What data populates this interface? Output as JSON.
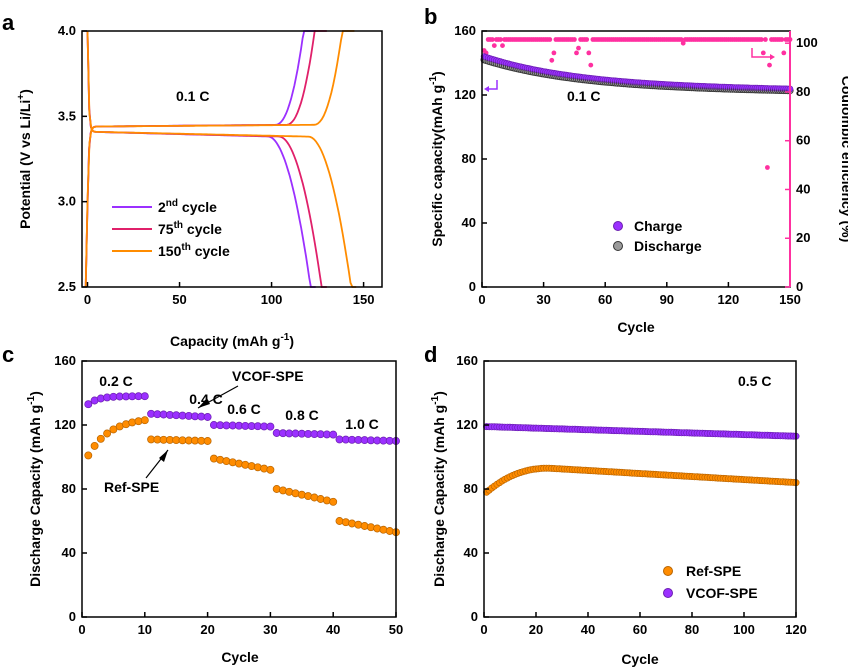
{
  "colors": {
    "purple": "#9b30ff",
    "crimson": "#e0206a",
    "orange": "#ff8c00",
    "magenta": "#ff30a0",
    "gray": "#666666"
  },
  "chart_data": [
    {
      "panel": "a",
      "type": "line",
      "xlabel": "Capacity (mAh g",
      "xlabel_sup": "-1",
      "xlabel_tail": ")",
      "ylabel": "Potential (V vs Li/Li",
      "ylabel_sup": "+",
      "ylabel_tail": ")",
      "xlim": [
        -3,
        160
      ],
      "ylim": [
        2.5,
        4.0
      ],
      "xticks": [
        "0",
        "50",
        "100",
        "150"
      ],
      "yticks": [
        "2.5",
        "3.0",
        "3.5",
        "4.0"
      ],
      "annotation": "0.1 C",
      "series": [
        {
          "name_num": "2",
          "name_sup": "nd",
          "name_rest": " cycle",
          "color": "purple",
          "charge_capacity": 124,
          "discharge_capacity": 124
        },
        {
          "name_num": "75",
          "name_sup": "th",
          "name_rest": " cycle",
          "color": "crimson",
          "charge_capacity": 130,
          "discharge_capacity": 130
        },
        {
          "name_num": "150",
          "name_sup": "th",
          "name_rest": " cycle",
          "color": "orange",
          "charge_capacity": 145,
          "discharge_capacity": 146
        }
      ]
    },
    {
      "panel": "b",
      "type": "scatter",
      "xlabel": "Cycle",
      "ylabel": "Specific capacity(mAh g",
      "ylabel_sup": "-1",
      "ylabel_tail": ")",
      "y2label": "Coulombic efficiency (%)",
      "xlim": [
        0,
        150
      ],
      "ylim": [
        0,
        160
      ],
      "y2lim": [
        0,
        105
      ],
      "xticks": [
        "0",
        "30",
        "60",
        "90",
        "120",
        "150"
      ],
      "yticks": [
        "0",
        "40",
        "80",
        "120",
        "160"
      ],
      "y2ticks": [
        "0",
        "20",
        "40",
        "60",
        "80",
        "100"
      ],
      "annotation": "0.1 C",
      "series": [
        {
          "name": "Charge",
          "color": "purple",
          "axis": "left",
          "start": 144,
          "end": 123
        },
        {
          "name": "Discharge",
          "color": "gray",
          "axis": "left",
          "start": 142,
          "end": 122
        },
        {
          "name": "",
          "color": "magenta",
          "axis": "right",
          "value": 101.5,
          "outliers": [
            [
              1,
              97
            ],
            [
              2,
              96
            ],
            [
              6,
              99
            ],
            [
              10,
              99
            ],
            [
              34,
              93
            ],
            [
              35,
              96
            ],
            [
              46,
              96
            ],
            [
              47,
              98
            ],
            [
              52,
              96
            ],
            [
              53,
              91
            ],
            [
              98,
              100
            ],
            [
              137,
              96
            ],
            [
              139,
              49
            ],
            [
              140,
              91
            ],
            [
              147,
              96
            ]
          ]
        }
      ]
    },
    {
      "panel": "c",
      "type": "scatter",
      "xlabel": "Cycle",
      "ylabel": "Discharge Capacity (mAh g",
      "ylabel_sup": "-1",
      "ylabel_tail": ")",
      "xlim": [
        0,
        50
      ],
      "ylim": [
        0,
        160
      ],
      "xticks": [
        "0",
        "10",
        "20",
        "30",
        "40",
        "50"
      ],
      "yticks": [
        "0",
        "40",
        "80",
        "120",
        "160"
      ],
      "rates": [
        "0.2 C",
        "0.4 C",
        "0.6 C",
        "0.8 C",
        "1.0 C"
      ],
      "series": [
        {
          "name": "VCOF-SPE",
          "color": "purple",
          "segments": [
            [
              133,
              138
            ],
            [
              127,
              125
            ],
            [
              120,
              119
            ],
            [
              115,
              114
            ],
            [
              111,
              110
            ]
          ]
        },
        {
          "name": "Ref-SPE",
          "color": "orange",
          "segments": [
            [
              101,
              123
            ],
            [
              111,
              110
            ],
            [
              99,
              92
            ],
            [
              80,
              72
            ],
            [
              60,
              53
            ]
          ]
        }
      ]
    },
    {
      "panel": "d",
      "type": "scatter",
      "xlabel": "Cycle",
      "ylabel": "Discharge Capacity (mAh g",
      "ylabel_sup": "-1",
      "ylabel_tail": ")",
      "xlim": [
        0,
        120
      ],
      "ylim": [
        0,
        160
      ],
      "xticks": [
        "0",
        "20",
        "40",
        "60",
        "80",
        "100",
        "120"
      ],
      "yticks": [
        "0",
        "40",
        "80",
        "120",
        "160"
      ],
      "annotation": "0.5 C",
      "series": [
        {
          "name": "Ref-SPE",
          "color": "orange",
          "start": 78,
          "peak": 93,
          "peak_cycle": 25,
          "end": 84
        },
        {
          "name": "VCOF-SPE",
          "color": "purple",
          "start": 119,
          "end": 113
        }
      ]
    }
  ]
}
